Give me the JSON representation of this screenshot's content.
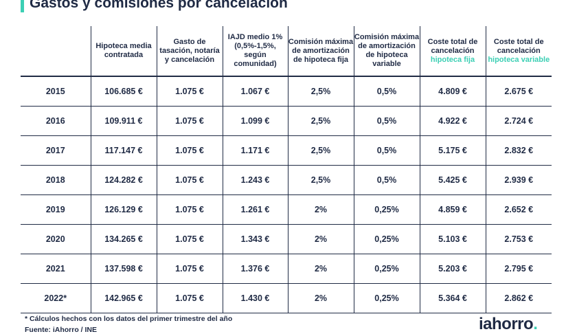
{
  "title": "Gastos y comisiones por cancelación",
  "headers": [
    "",
    "Hipoteca media contratada",
    "Gasto de tasación, notaría y cancelación",
    "IAJD medio 1% (0,5%-1,5%, según comunidad)",
    "Comisión máxima de amortización de hipoteca fija",
    "Comisión máxima de amortización de hipoteca variable",
    {
      "main": "Coste total de cancelación",
      "accent": "hipoteca fija"
    },
    {
      "main": "Coste total de cancelación",
      "accent": "hipoteca variable"
    }
  ],
  "rows": [
    {
      "year": "2015",
      "mortgage": "106.685 €",
      "fees": "1.075 €",
      "iajd": "1.067 €",
      "fixed_fee": "2,5%",
      "variable_fee": "0,5%",
      "total_fixed": "4.809 €",
      "total_variable": "2.675 €"
    },
    {
      "year": "2016",
      "mortgage": "109.911 €",
      "fees": "1.075 €",
      "iajd": "1.099 €",
      "fixed_fee": "2,5%",
      "variable_fee": "0,5%",
      "total_fixed": "4.922 €",
      "total_variable": "2.724 €"
    },
    {
      "year": "2017",
      "mortgage": "117.147 €",
      "fees": "1.075 €",
      "iajd": "1.171 €",
      "fixed_fee": "2,5%",
      "variable_fee": "0,5%",
      "total_fixed": "5.175 €",
      "total_variable": "2.832 €"
    },
    {
      "year": "2018",
      "mortgage": "124.282 €",
      "fees": "1.075 €",
      "iajd": "1.243 €",
      "fixed_fee": "2,5%",
      "variable_fee": "0,5%",
      "total_fixed": "5.425 €",
      "total_variable": "2.939 €"
    },
    {
      "year": "2019",
      "mortgage": "126.129 €",
      "fees": "1.075 €",
      "iajd": "1.261 €",
      "fixed_fee": "2%",
      "variable_fee": "0,25%",
      "total_fixed": "4.859 €",
      "total_variable": "2.652 €"
    },
    {
      "year": "2020",
      "mortgage": "134.265 €",
      "fees": "1.075 €",
      "iajd": "1.343 €",
      "fixed_fee": "2%",
      "variable_fee": "0,25%",
      "total_fixed": "5.103 €",
      "total_variable": "2.753 €"
    },
    {
      "year": "2021",
      "mortgage": "137.598 €",
      "fees": "1.075 €",
      "iajd": "1.376 €",
      "fixed_fee": "2%",
      "variable_fee": "0,25%",
      "total_fixed": "5.203 €",
      "total_variable": "2.795 €"
    },
    {
      "year": "2022*",
      "mortgage": "142.965 €",
      "fees": "1.075 €",
      "iajd": "1.430 €",
      "fixed_fee": "2%",
      "variable_fee": "0,25%",
      "total_fixed": "5.364 €",
      "total_variable": "2.862 €"
    }
  ],
  "footnote": "* Cálculos hechos con los datos del primer trimestre del año",
  "source": "Fuente: iAhorro / INE",
  "logo": {
    "text": "iahorro",
    "dot": "."
  },
  "colors": {
    "accent": "#3ccfb4",
    "text": "#1f2a44"
  }
}
